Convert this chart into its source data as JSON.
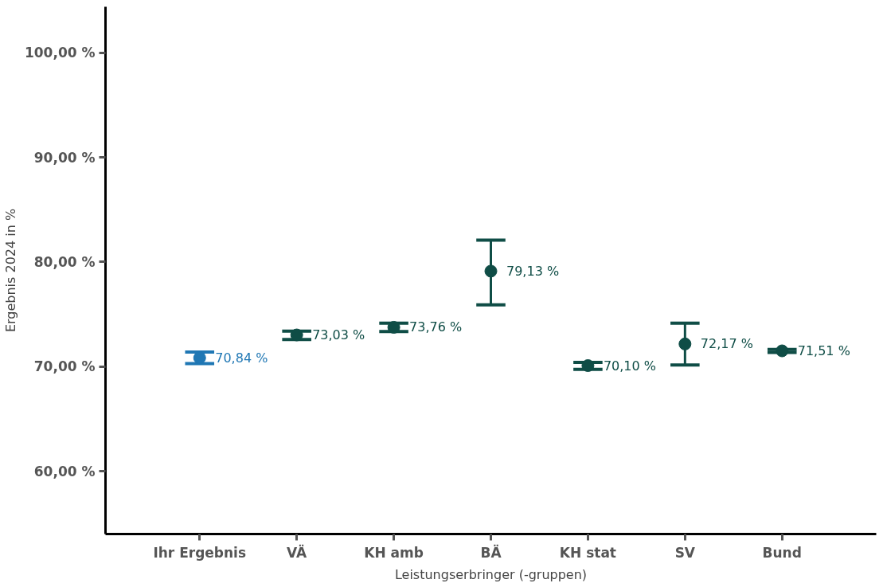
{
  "chart_data": {
    "type": "scatter",
    "xlabel": "Leistungserbringer (-gruppen)",
    "ylabel": "Ergebnis 2024 in %",
    "categories": [
      "Ihr Ergebnis",
      "VÄ",
      "KH amb",
      "BÄ",
      "KH stat",
      "SV",
      "Bund"
    ],
    "values": [
      70.84,
      73.03,
      73.76,
      79.13,
      70.1,
      72.17,
      71.51
    ],
    "value_labels": [
      "70,84 %",
      "73,03 %",
      "73,76 %",
      "79,13 %",
      "70,10 %",
      "72,17 %",
      "71,51 %"
    ],
    "errors": [
      [
        70.3,
        71.4
      ],
      [
        72.6,
        73.4
      ],
      [
        73.35,
        74.15
      ],
      [
        75.9,
        82.1
      ],
      [
        69.75,
        70.4
      ],
      [
        70.15,
        74.15
      ],
      [
        71.35,
        71.65
      ]
    ],
    "colors": [
      "#1f77b4",
      "#0f4d46",
      "#0f4d46",
      "#0f4d46",
      "#0f4d46",
      "#0f4d46",
      "#0f4d46"
    ],
    "marker": "circle",
    "ylim": [
      54,
      104.4
    ],
    "yticks": [
      {
        "value": 60,
        "label": "60,00 %"
      },
      {
        "value": 70,
        "label": "70,00 %"
      },
      {
        "value": 80,
        "label": "80,00 %"
      },
      {
        "value": 90,
        "label": "90,00 %"
      },
      {
        "value": 100,
        "label": "100,00 %"
      }
    ],
    "grid": false
  }
}
